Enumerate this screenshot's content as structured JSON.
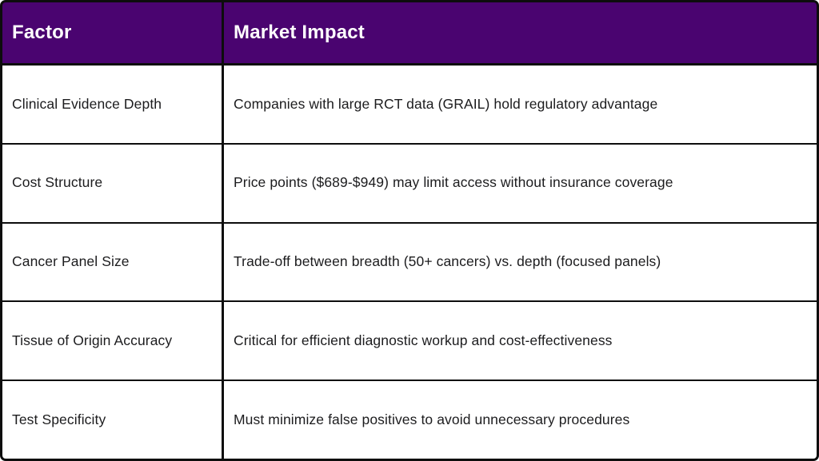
{
  "table": {
    "headers": [
      {
        "label": "Factor"
      },
      {
        "label": "Market Impact"
      }
    ],
    "rows": [
      {
        "factor": "Clinical Evidence Depth",
        "impact": "Companies with large RCT data (GRAIL) hold regulatory advantage"
      },
      {
        "factor": "Cost Structure",
        "impact": "Price points ($689-$949) may limit access without insurance coverage"
      },
      {
        "factor": "Cancer Panel Size",
        "impact": "Trade-off between breadth (50+ cancers) vs. depth (focused panels)"
      },
      {
        "factor": "Tissue of Origin Accuracy",
        "impact": "Critical for efficient diagnostic workup and cost-effectiveness"
      },
      {
        "factor": "Test Specificity",
        "impact": "Must minimize false positives to avoid unnecessary procedures"
      }
    ]
  },
  "colors": {
    "header_bg": "#4A0470",
    "border": "#0d0d0d",
    "body_text": "#1c1c1e",
    "header_text": "#ffffff",
    "cell_bg": "#ffffff"
  }
}
